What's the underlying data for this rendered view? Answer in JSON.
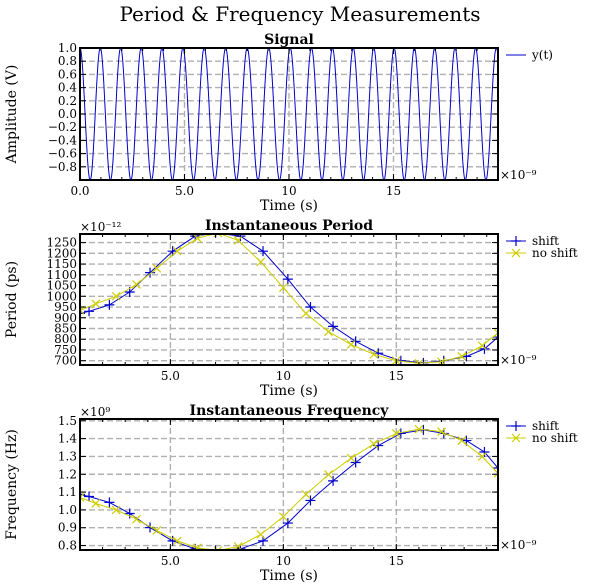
{
  "title": "Period & Frequency Measurements",
  "colors": {
    "signal": "#0000cc",
    "shift": "#0000cc",
    "noshift": "#cccc00",
    "grid": "#b0b0b0"
  },
  "chart_data": [
    {
      "type": "line",
      "title": "Signal",
      "xlabel": "Time (s)",
      "ylabel": "Amplitude (V)",
      "x_scale_label": "×10⁻⁹",
      "xlim": [
        0,
        20
      ],
      "ylim": [
        -1,
        1
      ],
      "xticks": [
        0,
        5,
        10,
        15
      ],
      "xtick_labels": [
        "0.0",
        "5.0",
        "10",
        "15"
      ],
      "yticks": [
        1.0,
        0.8,
        0.6,
        0.4,
        0.2,
        0.0,
        -0.2,
        -0.4,
        -0.6,
        -0.8
      ],
      "ytick_labels": [
        "1.0",
        "0.8",
        "0.6",
        "0.4",
        "0.2",
        "0.0",
        "−0.2",
        "−0.4",
        "−0.6",
        "−0.8"
      ],
      "grid": true,
      "legend_position": "outside-right",
      "series": [
        {
          "name": "y(t)",
          "kind": "signal",
          "function": "cos(2π·1e9·t + 0.5e9·sin(2π·0.0625e9·t)·1.0)"
        }
      ]
    },
    {
      "type": "line",
      "title": "Instantaneous Period",
      "xlabel": "Time (s)",
      "ylabel": "Period (ps)",
      "x_scale_label": "×10⁻⁹",
      "y_scale_label": "×10⁻¹²",
      "xlim": [
        1,
        19.5
      ],
      "ylim": [
        680,
        1290
      ],
      "xticks": [
        5,
        10,
        15
      ],
      "xtick_labels": [
        "5.0",
        "10",
        "15"
      ],
      "yticks": [
        1250,
        1200,
        1150,
        1100,
        1050,
        1000,
        950,
        900,
        850,
        800,
        750,
        700
      ],
      "ytick_labels": [
        "1250",
        "1200",
        "1150",
        "1100",
        "1050",
        "1000",
        "950",
        "900",
        "850",
        "800",
        "750",
        "700"
      ],
      "grid": true,
      "legend_position": "outside-right",
      "series": [
        {
          "name": "shift",
          "marker": "+",
          "x": [
            1.0,
            1.4,
            2.3,
            3.2,
            4.1,
            5.1,
            6.1,
            7.0,
            8.1,
            9.1,
            10.2,
            11.2,
            12.2,
            13.2,
            14.2,
            15.2,
            16.2,
            17.1,
            18.1,
            18.9,
            19.5
          ],
          "y": [
            920,
            930,
            960,
            1020,
            1110,
            1210,
            1280,
            1295,
            1280,
            1210,
            1080,
            950,
            860,
            790,
            735,
            700,
            690,
            700,
            720,
            755,
            810
          ]
        },
        {
          "name": "no shift",
          "marker": "x",
          "x": [
            1.0,
            1.7,
            2.6,
            3.5,
            4.4,
            5.3,
            6.2,
            7.1,
            8.0,
            9.0,
            10.0,
            11.0,
            12.0,
            13.0,
            14.0,
            15.0,
            16.0,
            17.0,
            17.9,
            18.8,
            19.5
          ],
          "y": [
            935,
            965,
            1000,
            1055,
            1130,
            1210,
            1270,
            1295,
            1260,
            1160,
            1040,
            920,
            835,
            775,
            730,
            700,
            688,
            695,
            720,
            770,
            830
          ]
        }
      ]
    },
    {
      "type": "line",
      "title": "Instantaneous Frequency",
      "xlabel": "Time (s)",
      "ylabel": "Frequency (Hz)",
      "x_scale_label": "×10⁻⁹",
      "y_scale_label": "×10⁹",
      "xlim": [
        1,
        19.5
      ],
      "ylim": [
        0.775,
        1.51
      ],
      "xticks": [
        5,
        10,
        15
      ],
      "xtick_labels": [
        "5.0",
        "10",
        "15"
      ],
      "yticks": [
        1.5,
        1.4,
        1.3,
        1.2,
        1.1,
        1.0,
        0.9,
        0.8
      ],
      "ytick_labels": [
        "1.5",
        "1.4",
        "1.3",
        "1.2",
        "1.1",
        "1.0",
        "0.9",
        "0.8"
      ],
      "grid": true,
      "legend_position": "outside-right",
      "series": [
        {
          "name": "shift",
          "marker": "+",
          "x": [
            1.0,
            1.4,
            2.3,
            3.2,
            4.1,
            5.1,
            6.1,
            7.0,
            8.1,
            9.1,
            10.2,
            11.2,
            12.2,
            13.2,
            14.2,
            15.2,
            16.2,
            17.1,
            18.1,
            18.9,
            19.5
          ],
          "y": [
            1.087,
            1.075,
            1.042,
            0.98,
            0.901,
            0.826,
            0.781,
            0.772,
            0.781,
            0.826,
            0.926,
            1.053,
            1.163,
            1.266,
            1.361,
            1.429,
            1.449,
            1.429,
            1.389,
            1.325,
            1.235
          ]
        },
        {
          "name": "no shift",
          "marker": "x",
          "x": [
            1.0,
            1.7,
            2.6,
            3.5,
            4.4,
            5.3,
            6.2,
            7.1,
            8.0,
            9.0,
            10.0,
            11.0,
            12.0,
            13.0,
            14.0,
            15.0,
            16.0,
            17.0,
            17.9,
            18.8,
            19.5
          ],
          "y": [
            1.07,
            1.036,
            1.0,
            0.948,
            0.885,
            0.826,
            0.787,
            0.772,
            0.794,
            0.862,
            0.962,
            1.087,
            1.198,
            1.29,
            1.37,
            1.429,
            1.453,
            1.439,
            1.389,
            1.299,
            1.205
          ]
        }
      ]
    }
  ]
}
